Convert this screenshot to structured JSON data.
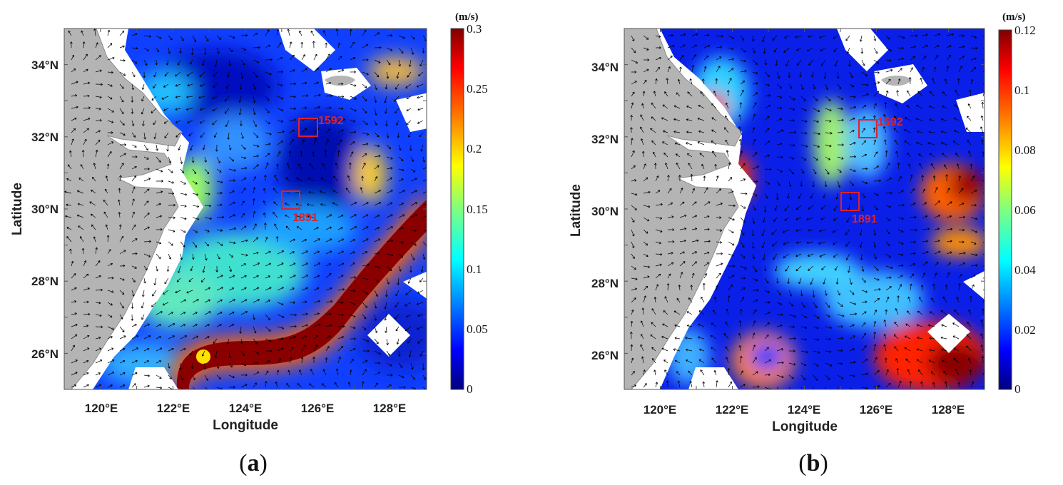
{
  "figure": {
    "panels": [
      {
        "id": "a",
        "tag_open": "(",
        "tag_letter": "a",
        "tag_close": ")",
        "colorbar_unit": "(m/s)",
        "colorbar_ticks": [
          "0.3",
          "0.25",
          "0.2",
          "0.15",
          "0.1",
          "0.05",
          "0"
        ],
        "colorbar_range": [
          0,
          0.3
        ]
      },
      {
        "id": "b",
        "tag_open": "(",
        "tag_letter": "b",
        "tag_close": ")",
        "colorbar_unit": "(m/s)",
        "colorbar_ticks": [
          "0.12",
          "0.1",
          "0.08",
          "0.06",
          "0.04",
          "0.02",
          "0"
        ],
        "colorbar_range": [
          0,
          0.12
        ]
      }
    ],
    "x_axis_title": "Longitude",
    "y_axis_title": "Latitude",
    "x_ticks": [
      "120°E",
      "122°E",
      "124°E",
      "126°E",
      "128°E"
    ],
    "y_ticks": [
      "34°N",
      "32°N",
      "30°N",
      "28°N",
      "26°N"
    ],
    "lon_range": [
      119,
      129
    ],
    "lat_range": [
      25,
      35
    ],
    "station_boxes": [
      {
        "label": "1592"
      },
      {
        "label": "1891"
      }
    ],
    "colors": {
      "land": "#b4b4b4",
      "box": "#e0202a",
      "colormap": [
        "#00007f",
        "#0000ff",
        "#007fff",
        "#00ffff",
        "#7fff7f",
        "#ffff00",
        "#ff7f00",
        "#ff0000",
        "#7f0000"
      ]
    }
  }
}
